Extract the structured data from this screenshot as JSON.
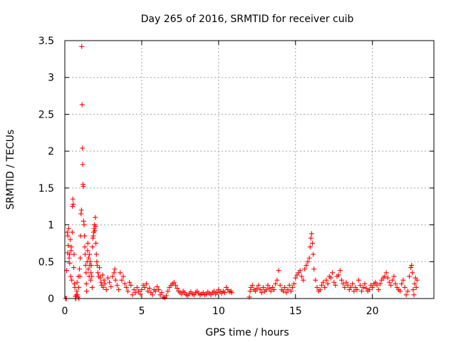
{
  "chart_data": {
    "type": "scatter",
    "title": "Day 265 of 2016, SRMTID for receiver cuib",
    "xlabel": "GPS time / hours",
    "ylabel": "SRMTID / TECUs",
    "xlim": [
      0,
      24
    ],
    "ylim": [
      0,
      3.5
    ],
    "xticks": [
      0,
      5,
      10,
      15,
      20
    ],
    "xtick_labels": [
      "0",
      "5",
      "10",
      "15",
      "20"
    ],
    "yticks": [
      0,
      0.5,
      1,
      1.5,
      2,
      2.5,
      3,
      3.5
    ],
    "ytick_labels": [
      "0",
      "0.5",
      "1",
      "1.5",
      "2",
      "2.5",
      "3",
      "3.5"
    ],
    "grid": true,
    "marker": "+",
    "color": "#ff0000",
    "series": [
      {
        "name": "SRMTID",
        "points": [
          [
            0.05,
            0.0
          ],
          [
            0.1,
            0.0
          ],
          [
            0.12,
            0.38
          ],
          [
            0.15,
            0.9
          ],
          [
            0.18,
            0.62
          ],
          [
            0.2,
            0.85
          ],
          [
            0.22,
            0.72
          ],
          [
            0.25,
            0.95
          ],
          [
            0.28,
            0.55
          ],
          [
            0.3,
            0.6
          ],
          [
            0.32,
            0.48
          ],
          [
            0.35,
            0.8
          ],
          [
            0.38,
            0.3
          ],
          [
            0.4,
            0.65
          ],
          [
            0.42,
            0.7
          ],
          [
            0.45,
            0.25
          ],
          [
            0.48,
            0.9
          ],
          [
            0.5,
            1.25
          ],
          [
            0.52,
            1.35
          ],
          [
            0.55,
            1.28
          ],
          [
            0.58,
            0.42
          ],
          [
            0.6,
            0.6
          ],
          [
            0.62,
            0.2
          ],
          [
            0.65,
            0.15
          ],
          [
            0.68,
            0.03
          ],
          [
            0.7,
            0.0
          ],
          [
            0.72,
            0.0
          ],
          [
            0.75,
            0.05
          ],
          [
            0.78,
            0.1
          ],
          [
            0.8,
            0.22
          ],
          [
            0.82,
            0.05
          ],
          [
            0.85,
            0.02
          ],
          [
            0.88,
            0.3
          ],
          [
            0.9,
            0.15
          ],
          [
            0.92,
            0.0
          ],
          [
            0.95,
            0.4
          ],
          [
            0.98,
            0.3
          ],
          [
            1.0,
            0.55
          ],
          [
            1.02,
            0.85
          ],
          [
            1.05,
            1.15
          ],
          [
            1.08,
            1.2
          ],
          [
            1.1,
            3.42
          ],
          [
            1.12,
            2.63
          ],
          [
            1.14,
            2.04
          ],
          [
            1.16,
            1.82
          ],
          [
            1.18,
            1.55
          ],
          [
            1.2,
            1.52
          ],
          [
            1.22,
            1.05
          ],
          [
            1.25,
            1.0
          ],
          [
            1.28,
            0.85
          ],
          [
            1.3,
            0.7
          ],
          [
            1.32,
            0.6
          ],
          [
            1.35,
            0.45
          ],
          [
            1.38,
            0.35
          ],
          [
            1.4,
            0.2
          ],
          [
            1.42,
            0.1
          ],
          [
            1.45,
            0.5
          ],
          [
            1.48,
            0.65
          ],
          [
            1.5,
            0.75
          ],
          [
            1.52,
            0.4
          ],
          [
            1.55,
            0.55
          ],
          [
            1.58,
            0.3
          ],
          [
            1.6,
            0.6
          ],
          [
            1.62,
            0.45
          ],
          [
            1.65,
            0.5
          ],
          [
            1.68,
            0.25
          ],
          [
            1.7,
            0.35
          ],
          [
            1.72,
            0.45
          ],
          [
            1.75,
            0.3
          ],
          [
            1.78,
            0.15
          ],
          [
            1.8,
            0.7
          ],
          [
            1.82,
            0.82
          ],
          [
            1.85,
            0.85
          ],
          [
            1.88,
            0.9
          ],
          [
            1.9,
            0.95
          ],
          [
            1.92,
            1.0
          ],
          [
            1.95,
            0.92
          ],
          [
            1.98,
            1.1
          ],
          [
            2.0,
            0.98
          ],
          [
            2.02,
            0.75
          ],
          [
            2.05,
            0.6
          ],
          [
            2.08,
            0.5
          ],
          [
            2.1,
            0.45
          ],
          [
            2.15,
            0.35
          ],
          [
            2.2,
            0.3
          ],
          [
            2.25,
            0.42
          ],
          [
            2.3,
            0.28
          ],
          [
            2.35,
            0.22
          ],
          [
            2.4,
            0.18
          ],
          [
            2.45,
            0.32
          ],
          [
            2.5,
            0.15
          ],
          [
            2.55,
            0.25
          ],
          [
            2.6,
            0.2
          ],
          [
            2.7,
            0.12
          ],
          [
            2.8,
            0.28
          ],
          [
            2.9,
            0.22
          ],
          [
            3.0,
            0.16
          ],
          [
            3.1,
            0.3
          ],
          [
            3.2,
            0.35
          ],
          [
            3.25,
            0.4
          ],
          [
            3.3,
            0.25
          ],
          [
            3.4,
            0.18
          ],
          [
            3.5,
            0.12
          ],
          [
            3.6,
            0.35
          ],
          [
            3.7,
            0.25
          ],
          [
            3.8,
            0.3
          ],
          [
            3.9,
            0.2
          ],
          [
            4.0,
            0.15
          ],
          [
            4.1,
            0.1
          ],
          [
            4.2,
            0.22
          ],
          [
            4.3,
            0.18
          ],
          [
            4.4,
            0.05
          ],
          [
            4.5,
            0.12
          ],
          [
            4.6,
            0.08
          ],
          [
            4.7,
            0.15
          ],
          [
            4.8,
            0.1
          ],
          [
            4.9,
            0.06
          ],
          [
            5.0,
            0.12
          ],
          [
            5.1,
            0.18
          ],
          [
            5.2,
            0.15
          ],
          [
            5.3,
            0.2
          ],
          [
            5.4,
            0.1
          ],
          [
            5.5,
            0.14
          ],
          [
            5.6,
            0.08
          ],
          [
            5.7,
            0.05
          ],
          [
            5.8,
            0.12
          ],
          [
            5.9,
            0.1
          ],
          [
            6.0,
            0.16
          ],
          [
            6.1,
            0.12
          ],
          [
            6.2,
            0.05
          ],
          [
            6.3,
            0.08
          ],
          [
            6.4,
            0.02
          ],
          [
            6.5,
            0.01
          ],
          [
            6.6,
            0.04
          ],
          [
            6.7,
            0.1
          ],
          [
            6.8,
            0.15
          ],
          [
            6.9,
            0.18
          ],
          [
            7.0,
            0.2
          ],
          [
            7.1,
            0.22
          ],
          [
            7.2,
            0.18
          ],
          [
            7.3,
            0.14
          ],
          [
            7.4,
            0.1
          ],
          [
            7.5,
            0.08
          ],
          [
            7.6,
            0.06
          ],
          [
            7.7,
            0.1
          ],
          [
            7.8,
            0.08
          ],
          [
            7.9,
            0.05
          ],
          [
            8.0,
            0.04
          ],
          [
            8.1,
            0.07
          ],
          [
            8.2,
            0.09
          ],
          [
            8.3,
            0.06
          ],
          [
            8.4,
            0.05
          ],
          [
            8.5,
            0.08
          ],
          [
            8.6,
            0.1
          ],
          [
            8.7,
            0.07
          ],
          [
            8.8,
            0.05
          ],
          [
            8.9,
            0.06
          ],
          [
            9.0,
            0.08
          ],
          [
            9.1,
            0.05
          ],
          [
            9.2,
            0.06
          ],
          [
            9.3,
            0.09
          ],
          [
            9.4,
            0.07
          ],
          [
            9.5,
            0.05
          ],
          [
            9.6,
            0.08
          ],
          [
            9.7,
            0.1
          ],
          [
            9.8,
            0.06
          ],
          [
            9.9,
            0.08
          ],
          [
            10.0,
            0.12
          ],
          [
            10.1,
            0.09
          ],
          [
            10.2,
            0.07
          ],
          [
            10.3,
            0.1
          ],
          [
            10.4,
            0.08
          ],
          [
            10.5,
            0.15
          ],
          [
            10.6,
            0.12
          ],
          [
            10.7,
            0.09
          ],
          [
            10.8,
            0.1
          ],
          [
            10.85,
            0.08
          ],
          [
            12.0,
            0.02
          ],
          [
            12.05,
            0.1
          ],
          [
            12.1,
            0.15
          ],
          [
            12.2,
            0.18
          ],
          [
            12.3,
            0.12
          ],
          [
            12.4,
            0.1
          ],
          [
            12.5,
            0.14
          ],
          [
            12.6,
            0.18
          ],
          [
            12.7,
            0.12
          ],
          [
            12.8,
            0.08
          ],
          [
            12.9,
            0.15
          ],
          [
            13.0,
            0.1
          ],
          [
            13.1,
            0.12
          ],
          [
            13.2,
            0.18
          ],
          [
            13.3,
            0.14
          ],
          [
            13.4,
            0.1
          ],
          [
            13.5,
            0.15
          ],
          [
            13.6,
            0.12
          ],
          [
            13.7,
            0.2
          ],
          [
            13.8,
            0.25
          ],
          [
            13.9,
            0.38
          ],
          [
            14.0,
            0.18
          ],
          [
            14.1,
            0.12
          ],
          [
            14.2,
            0.1
          ],
          [
            14.3,
            0.15
          ],
          [
            14.4,
            0.08
          ],
          [
            14.5,
            0.12
          ],
          [
            14.6,
            0.18
          ],
          [
            14.7,
            0.1
          ],
          [
            14.8,
            0.15
          ],
          [
            14.9,
            0.2
          ],
          [
            15.0,
            0.28
          ],
          [
            15.1,
            0.32
          ],
          [
            15.2,
            0.35
          ],
          [
            15.3,
            0.38
          ],
          [
            15.4,
            0.3
          ],
          [
            15.5,
            0.25
          ],
          [
            15.6,
            0.4
          ],
          [
            15.7,
            0.45
          ],
          [
            15.8,
            0.5
          ],
          [
            15.9,
            0.55
          ],
          [
            15.95,
            0.7
          ],
          [
            16.0,
            0.82
          ],
          [
            16.05,
            0.88
          ],
          [
            16.1,
            0.75
          ],
          [
            16.15,
            0.6
          ],
          [
            16.2,
            0.4
          ],
          [
            16.3,
            0.25
          ],
          [
            16.4,
            0.15
          ],
          [
            16.5,
            0.1
          ],
          [
            16.6,
            0.12
          ],
          [
            16.7,
            0.18
          ],
          [
            16.8,
            0.22
          ],
          [
            16.9,
            0.15
          ],
          [
            17.0,
            0.25
          ],
          [
            17.1,
            0.2
          ],
          [
            17.2,
            0.3
          ],
          [
            17.3,
            0.28
          ],
          [
            17.4,
            0.35
          ],
          [
            17.5,
            0.22
          ],
          [
            17.6,
            0.18
          ],
          [
            17.7,
            0.3
          ],
          [
            17.8,
            0.32
          ],
          [
            17.9,
            0.38
          ],
          [
            18.0,
            0.25
          ],
          [
            18.1,
            0.2
          ],
          [
            18.2,
            0.15
          ],
          [
            18.3,
            0.22
          ],
          [
            18.4,
            0.18
          ],
          [
            18.5,
            0.12
          ],
          [
            18.6,
            0.15
          ],
          [
            18.7,
            0.2
          ],
          [
            18.8,
            0.1
          ],
          [
            18.9,
            0.15
          ],
          [
            19.0,
            0.12
          ],
          [
            19.1,
            0.25
          ],
          [
            19.2,
            0.18
          ],
          [
            19.3,
            0.1
          ],
          [
            19.4,
            0.15
          ],
          [
            19.5,
            0.2
          ],
          [
            19.6,
            0.14
          ],
          [
            19.7,
            0.1
          ],
          [
            19.8,
            0.12
          ],
          [
            19.9,
            0.18
          ],
          [
            20.0,
            0.15
          ],
          [
            20.1,
            0.2
          ],
          [
            20.2,
            0.22
          ],
          [
            20.3,
            0.18
          ],
          [
            20.4,
            0.12
          ],
          [
            20.5,
            0.2
          ],
          [
            20.6,
            0.25
          ],
          [
            20.7,
            0.28
          ],
          [
            20.8,
            0.3
          ],
          [
            20.9,
            0.35
          ],
          [
            21.0,
            0.28
          ],
          [
            21.1,
            0.22
          ],
          [
            21.2,
            0.18
          ],
          [
            21.3,
            0.25
          ],
          [
            21.4,
            0.3
          ],
          [
            21.5,
            0.2
          ],
          [
            21.6,
            0.15
          ],
          [
            21.7,
            0.12
          ],
          [
            21.8,
            0.1
          ],
          [
            21.9,
            0.2
          ],
          [
            22.0,
            0.25
          ],
          [
            22.1,
            0.15
          ],
          [
            22.2,
            0.05
          ],
          [
            22.3,
            0.1
          ],
          [
            22.4,
            0.3
          ],
          [
            22.5,
            0.42
          ],
          [
            22.55,
            0.45
          ],
          [
            22.6,
            0.35
          ],
          [
            22.65,
            0.12
          ],
          [
            22.7,
            0.05
          ],
          [
            22.75,
            0.2
          ],
          [
            22.8,
            0.28
          ],
          [
            22.85,
            0.15
          ],
          [
            22.9,
            0.25
          ]
        ]
      }
    ]
  }
}
